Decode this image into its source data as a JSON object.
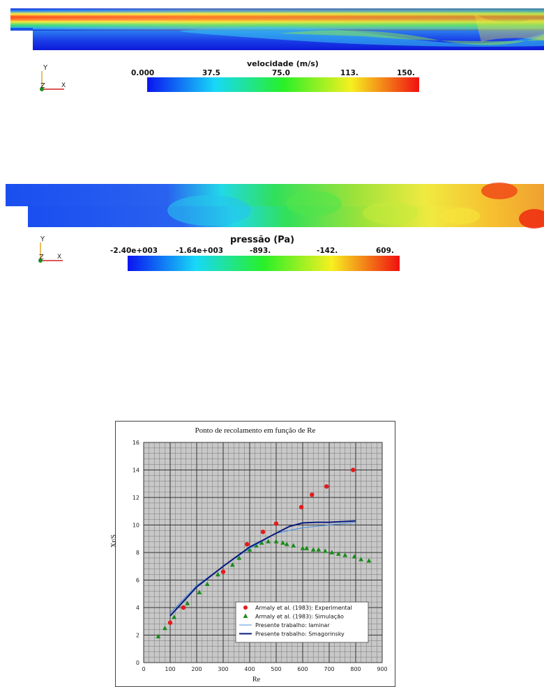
{
  "velocity_panel": {
    "title": "velocidade (m/s)",
    "ticks": [
      "0.000",
      "37.5",
      "75.0",
      "113.",
      "150."
    ]
  },
  "pressure_panel": {
    "title": "pressão (Pa)",
    "ticks": [
      "-2.40e+003",
      "-1.64e+003",
      "-893.",
      "-142.",
      "609."
    ]
  },
  "axes_triad": {
    "y": "Y",
    "z": "Z",
    "x": "X"
  },
  "colors": {
    "experimental": "#e41a1c",
    "simulation": "#1a8a1a",
    "laminar": "#4a90e2",
    "smagorinsky": "#0a1a7a"
  },
  "chart_data": {
    "type": "scatter",
    "title": "Ponto de recolamento em função de Re",
    "xlabel": "Re",
    "ylabel": "Xr/S",
    "xlim": [
      0,
      900
    ],
    "ylim": [
      0,
      16
    ],
    "xticks": [
      0,
      100,
      200,
      300,
      400,
      500,
      600,
      700,
      800,
      900
    ],
    "yticks": [
      0,
      2,
      4,
      6,
      8,
      10,
      12,
      14,
      16
    ],
    "grid": true,
    "legend_position": "bottom-right",
    "series": [
      {
        "name": "Armaly et al. (1983): Experimental",
        "kind": "points-circle",
        "x": [
          100,
          150,
          300,
          390,
          450,
          500,
          595,
          635,
          690,
          790
        ],
        "y": [
          2.9,
          4.0,
          6.6,
          8.6,
          9.5,
          10.1,
          11.3,
          12.2,
          12.8,
          14.0
        ]
      },
      {
        "name": "Armaly et al. (1983): Simulação",
        "kind": "points-triangle",
        "x": [
          55,
          80,
          115,
          165,
          210,
          240,
          280,
          335,
          360,
          400,
          425,
          445,
          470,
          500,
          525,
          540,
          565,
          600,
          615,
          640,
          660,
          685,
          710,
          735,
          760,
          795,
          820,
          850
        ],
        "y": [
          1.9,
          2.5,
          3.3,
          4.3,
          5.1,
          5.7,
          6.4,
          7.1,
          7.6,
          8.2,
          8.5,
          8.7,
          8.8,
          8.8,
          8.7,
          8.6,
          8.5,
          8.3,
          8.3,
          8.2,
          8.2,
          8.1,
          8.0,
          7.9,
          7.8,
          7.7,
          7.5,
          7.4
        ]
      },
      {
        "name": "Presente trabalho: laminar",
        "kind": "line-thin",
        "x": [
          100,
          200,
          300,
          400,
          500,
          600,
          700,
          800
        ],
        "y": [
          3.6,
          5.6,
          7.0,
          8.3,
          9.4,
          9.8,
          10.0,
          10.2
        ]
      },
      {
        "name": "Presente trabalho: Smagorinsky",
        "kind": "line-thick",
        "x": [
          100,
          200,
          300,
          400,
          500,
          550,
          600,
          650,
          700,
          800
        ],
        "y": [
          3.4,
          5.5,
          7.0,
          8.4,
          9.4,
          9.9,
          10.15,
          10.2,
          10.2,
          10.3
        ]
      }
    ]
  }
}
